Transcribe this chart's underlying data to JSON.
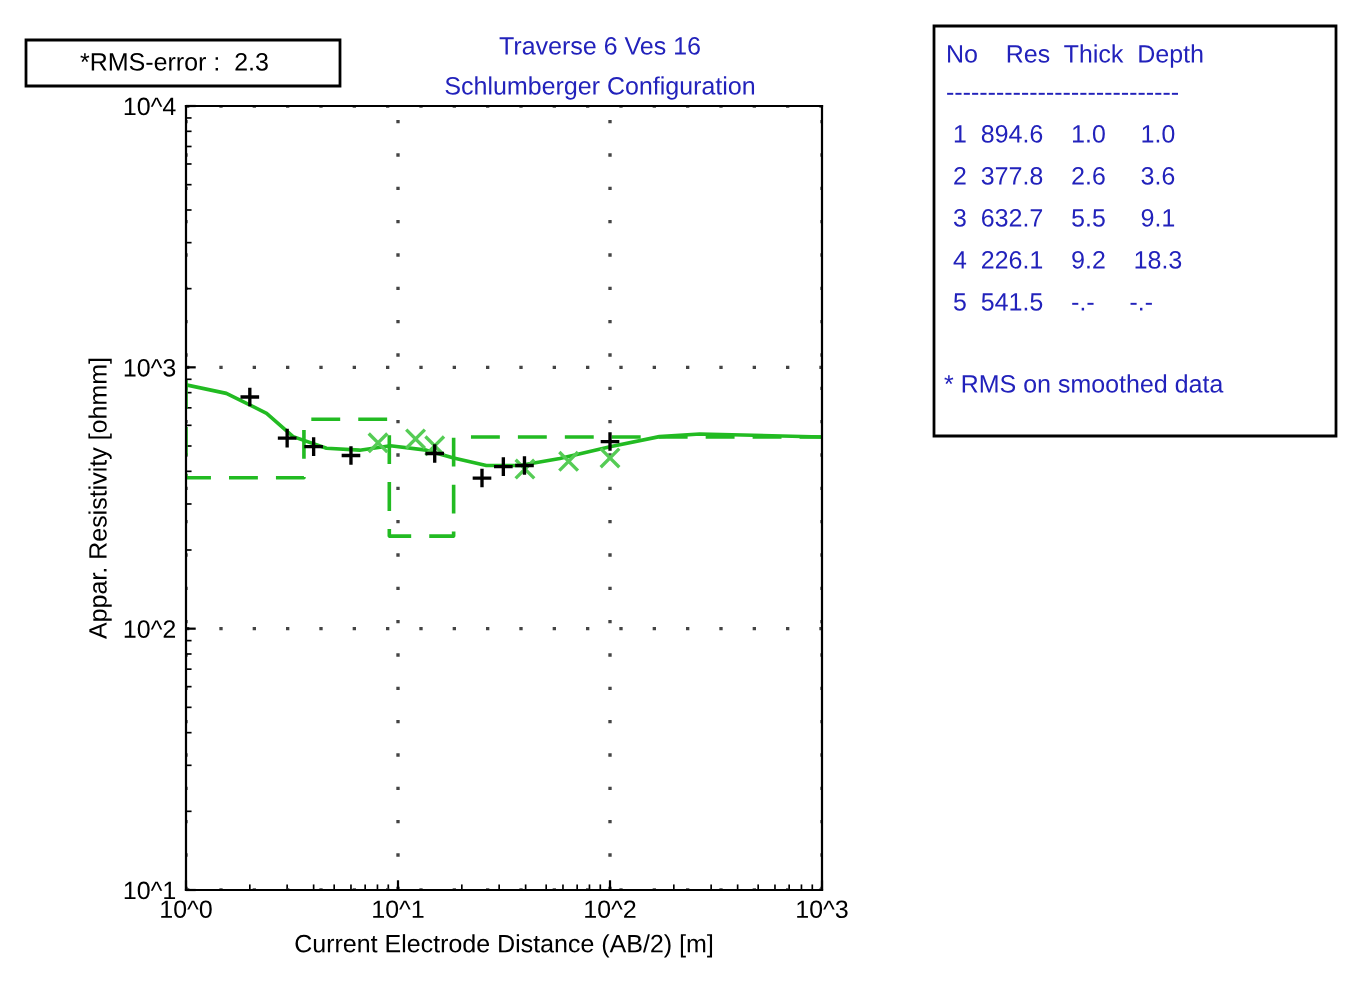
{
  "chart_data": {
    "type": "scatter",
    "title": "Traverse 6 Ves 16",
    "subtitle": "Schlumberger Configuration",
    "xlabel": "Current Electrode Distance (AB/2) [m]",
    "ylabel": "Appar. Resistivity [ohmm]",
    "log": "xy",
    "xlim": [
      1,
      1000
    ],
    "ylim": [
      10,
      10000
    ],
    "xticks": [
      {
        "value": 1,
        "label": "10^0"
      },
      {
        "value": 10,
        "label": "10^1"
      },
      {
        "value": 100,
        "label": "10^2"
      },
      {
        "value": 1000,
        "label": "10^3"
      }
    ],
    "yticks": [
      {
        "value": 10,
        "label": "10^1"
      },
      {
        "value": 100,
        "label": "10^2"
      },
      {
        "value": 1000,
        "label": "10^3"
      },
      {
        "value": 10000,
        "label": "10^4"
      }
    ],
    "grid": true,
    "legend": false,
    "series": [
      {
        "type": "line",
        "line_style": "dashed",
        "marker": "none",
        "color": "#22bb22",
        "x": [
          1,
          1,
          3.6,
          3.6,
          9.1,
          9.1,
          18.3,
          18.3,
          1000
        ],
        "values": [
          894.6,
          377.8,
          377.8,
          632.7,
          632.7,
          226.1,
          226.1,
          541.5,
          541.5
        ]
      },
      {
        "type": "line",
        "line_style": "solid",
        "marker": "none",
        "color": "#22bb22",
        "x": [
          1,
          1.55,
          2.4,
          3.2,
          4.6,
          6.6,
          9.2,
          13.6,
          18.3,
          26.1,
          37.5,
          58,
          100,
          171,
          265,
          1000
        ],
        "values": [
          857,
          795,
          667,
          543,
          490,
          482,
          501,
          482,
          450,
          421,
          421,
          448,
          497,
          543,
          556,
          541.5
        ]
      },
      {
        "marker": "x",
        "color": "#55cc55",
        "x": [
          8.05,
          12.1,
          14.9,
          39.7,
          63.8,
          100
        ],
        "values": [
          514,
          532,
          501,
          408,
          437,
          450
        ]
      },
      {
        "marker": "cross",
        "color": "#000000",
        "x": [
          2,
          3,
          4,
          6,
          14.9,
          24.9,
          31.4,
          39.5,
          100
        ],
        "values": [
          770,
          536,
          497,
          460,
          468,
          377,
          417,
          421,
          520
        ]
      }
    ],
    "annotations": [
      "*RMS-error :  2.3",
      "No    Res  Thick  Depth",
      "----------------------------",
      " 1  894.6    1.0     1.0",
      " 2  377.8    2.6     3.6",
      " 3  632.7    5.5     9.1",
      " 4  226.1    9.2    18.3",
      " 5  541.5    -.-     -.-",
      "* RMS on smoothed data"
    ]
  }
}
